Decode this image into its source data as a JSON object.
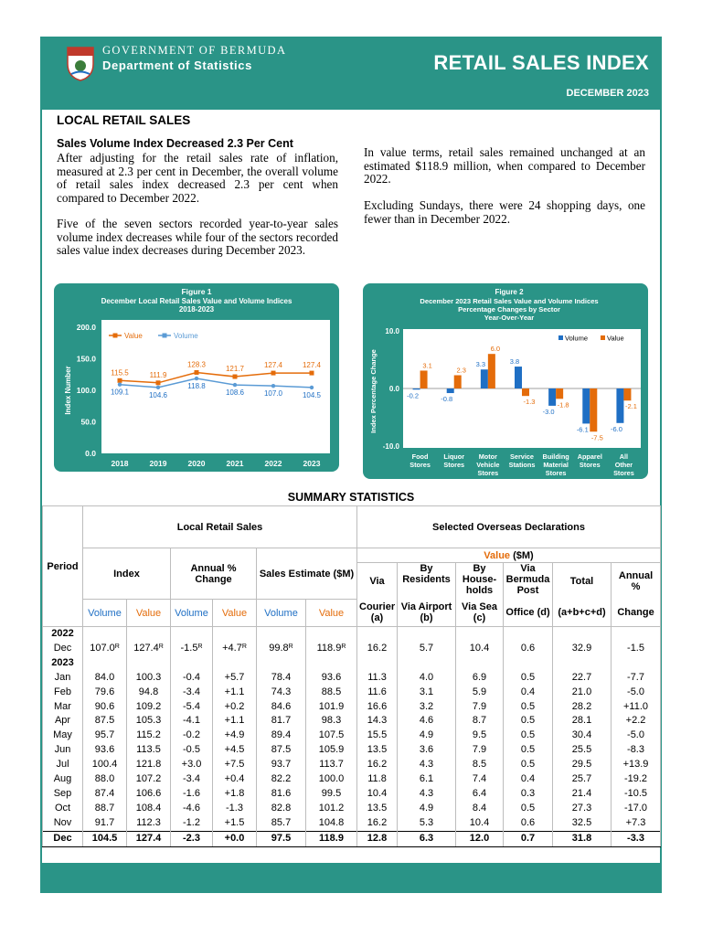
{
  "header": {
    "government": "GOVERNMENT OF BERMUDA",
    "department": "Department of Statistics",
    "title": "RETAIL SALES INDEX",
    "date": "DECEMBER 2023",
    "accent_color": "#2a9487"
  },
  "article": {
    "section_title": "LOCAL RETAIL SALES",
    "subheading": "Sales Volume Index Decreased 2.3 Per Cent",
    "para1": "After adjusting for the retail sales rate of inflation, measured at 2.3 per cent in December, the overall volume of retail sales index decreased 2.3 per cent when compared to December 2022.",
    "para2": "Five of the seven sectors recorded year-to-year sales volume index decreases while four of the sectors recorded sales value index decreases during December 2023.",
    "para3": "In value terms, retail sales remained unchanged at an estimated $118.9 million, when compared to December 2022.",
    "para4": "Excluding Sundays, there were 24 shopping days, one fewer than in December 2022."
  },
  "chart_data": [
    {
      "type": "line",
      "title": "Figure 1",
      "subtitle": "December Local Retail Sales Value and Volume Indices 2018-2023",
      "ylabel": "Index Number",
      "xlabel": "",
      "ylim": [
        0,
        200
      ],
      "yticks": [
        "0.0",
        "50.0",
        "100.0",
        "150.0",
        "200.0"
      ],
      "categories": [
        "2018",
        "2019",
        "2020",
        "2021",
        "2022",
        "2023"
      ],
      "series": [
        {
          "name": "Value",
          "color": "#e46c0a",
          "values": [
            115.5,
            111.9,
            128.3,
            121.7,
            127.4,
            127.4
          ],
          "labels": [
            "115.5",
            "111.9",
            "128.3",
            "121.7",
            "127.4",
            "127.4"
          ]
        },
        {
          "name": "Volume",
          "color": "#5b9bd5",
          "values": [
            109.1,
            104.6,
            118.8,
            108.6,
            107.0,
            104.5
          ],
          "labels": [
            "109.1",
            "104.6",
            "118.8",
            "108.6",
            "107.0",
            "104.5"
          ]
        }
      ],
      "legend": "top-left",
      "grid": false
    },
    {
      "type": "bar",
      "title": "Figure 2",
      "subtitle": "December 2023 Retail Sales Value and Volume Indices Percentage Changes by Sector Year-Over-Year",
      "ylabel": "Index Percentage Change",
      "xlabel": "",
      "ylim": [
        -10,
        10
      ],
      "yticks": [
        "-10.0",
        "0.0",
        "10.0"
      ],
      "categories": [
        "Food Stores",
        "Liquor Stores",
        "Motor Vehicle Stores",
        "Service Stations",
        "Building Material Stores",
        "Apparel Stores",
        "All Other Stores"
      ],
      "series": [
        {
          "name": "Volume",
          "color": "#1f6fc4",
          "values": [
            -0.2,
            -0.8,
            3.3,
            3.8,
            -3.0,
            -6.1,
            -6.0
          ],
          "labels": [
            "-0.2",
            "-0.8",
            "3.3",
            "3.8",
            "-3.0",
            "-6.1",
            "-6.0"
          ]
        },
        {
          "name": "Value",
          "color": "#e46c0a",
          "values": [
            3.1,
            2.3,
            6.0,
            -1.3,
            -1.8,
            -7.5,
            -2.1
          ],
          "labels": [
            "3.1",
            "2.3",
            "6.0",
            "-1.3",
            "-1.8",
            "-7.5",
            "-2.1"
          ]
        }
      ],
      "legend": "top-right",
      "grid": false
    }
  ],
  "summary": {
    "title": "SUMMARY STATISTICS",
    "period_label": "Period",
    "local_label": "Local Retail Sales",
    "overseas_label": "Selected Overseas Declarations",
    "value_label": "Value",
    "value_unit": "($M)",
    "index_label": "Index",
    "annual_change_label": "Annual % Change",
    "sales_estimate_label": "Sales Estimate ($M)",
    "volume": "Volume",
    "value": "Value",
    "via": "Via",
    "courier": "Courier (a)",
    "by": "By",
    "residents": "Residents",
    "via_airport": "Via Airport (b)",
    "by2": "By",
    "households": "House- holds",
    "via_sea": "Via Sea (c)",
    "via_bermuda": "Via Bermuda Post",
    "office": "Office (d)",
    "total": "Total",
    "total_formula": "(a+b+c+d)",
    "annual": "Annual",
    "pct": "%",
    "change": "Change",
    "rows": [
      {
        "period": "2022",
        "cells": [
          "",
          "",
          "",
          "",
          "",
          "",
          "",
          "",
          "",
          "",
          "",
          ""
        ]
      },
      {
        "period": "Dec",
        "cells": [
          "107.0",
          "127.4",
          "-1.5",
          "+4.7",
          "99.8",
          "118.9",
          "16.2",
          "5.7",
          "10.4",
          "0.6",
          "32.9",
          "-1.5"
        ],
        "revised": [
          true,
          true,
          true,
          true,
          true,
          true
        ]
      },
      {
        "period": "2023",
        "cells": [
          "",
          "",
          "",
          "",
          "",
          "",
          "",
          "",
          "",
          "",
          "",
          ""
        ]
      },
      {
        "period": "Jan",
        "cells": [
          "84.0",
          "100.3",
          "-0.4",
          "+5.7",
          "78.4",
          "93.6",
          "11.3",
          "4.0",
          "6.9",
          "0.5",
          "22.7",
          "-7.7"
        ]
      },
      {
        "period": "Feb",
        "cells": [
          "79.6",
          "94.8",
          "-3.4",
          "+1.1",
          "74.3",
          "88.5",
          "11.6",
          "3.1",
          "5.9",
          "0.4",
          "21.0",
          "-5.0"
        ]
      },
      {
        "period": "Mar",
        "cells": [
          "90.6",
          "109.2",
          "-5.4",
          "+0.2",
          "84.6",
          "101.9",
          "16.6",
          "3.2",
          "7.9",
          "0.5",
          "28.2",
          "+11.0"
        ]
      },
      {
        "period": "Apr",
        "cells": [
          "87.5",
          "105.3",
          "-4.1",
          "+1.1",
          "81.7",
          "98.3",
          "14.3",
          "4.6",
          "8.7",
          "0.5",
          "28.1",
          "+2.2"
        ]
      },
      {
        "period": "May",
        "cells": [
          "95.7",
          "115.2",
          "-0.2",
          "+4.9",
          "89.4",
          "107.5",
          "15.5",
          "4.9",
          "9.5",
          "0.5",
          "30.4",
          "-5.0"
        ]
      },
      {
        "period": "Jun",
        "cells": [
          "93.6",
          "113.5",
          "-0.5",
          "+4.5",
          "87.5",
          "105.9",
          "13.5",
          "3.6",
          "7.9",
          "0.5",
          "25.5",
          "-8.3"
        ]
      },
      {
        "period": "Jul",
        "cells": [
          "100.4",
          "121.8",
          "+3.0",
          "+7.5",
          "93.7",
          "113.7",
          "16.2",
          "4.3",
          "8.5",
          "0.5",
          "29.5",
          "+13.9"
        ]
      },
      {
        "period": "Aug",
        "cells": [
          "88.0",
          "107.2",
          "-3.4",
          "+0.4",
          "82.2",
          "100.0",
          "11.8",
          "6.1",
          "7.4",
          "0.4",
          "25.7",
          "-19.2"
        ]
      },
      {
        "period": "Sep",
        "cells": [
          "87.4",
          "106.6",
          "-1.6",
          "+1.8",
          "81.6",
          "99.5",
          "10.4",
          "4.3",
          "6.4",
          "0.3",
          "21.4",
          "-10.5"
        ]
      },
      {
        "period": "Oct",
        "cells": [
          "88.7",
          "108.4",
          "-4.6",
          "-1.3",
          "82.8",
          "101.2",
          "13.5",
          "4.9",
          "8.4",
          "0.5",
          "27.3",
          "-17.0"
        ]
      },
      {
        "period": "Nov",
        "cells": [
          "91.7",
          "112.3",
          "-1.2",
          "+1.5",
          "85.7",
          "104.8",
          "16.2",
          "5.3",
          "10.4",
          "0.6",
          "32.5",
          "+7.3"
        ]
      },
      {
        "period": "Dec",
        "cells": [
          "104.5",
          "127.4",
          "-2.3",
          "+0.0",
          "97.5",
          "118.9",
          "12.8",
          "6.3",
          "12.0",
          "0.7",
          "31.8",
          "-3.3"
        ]
      }
    ],
    "revised_mark": "R"
  }
}
